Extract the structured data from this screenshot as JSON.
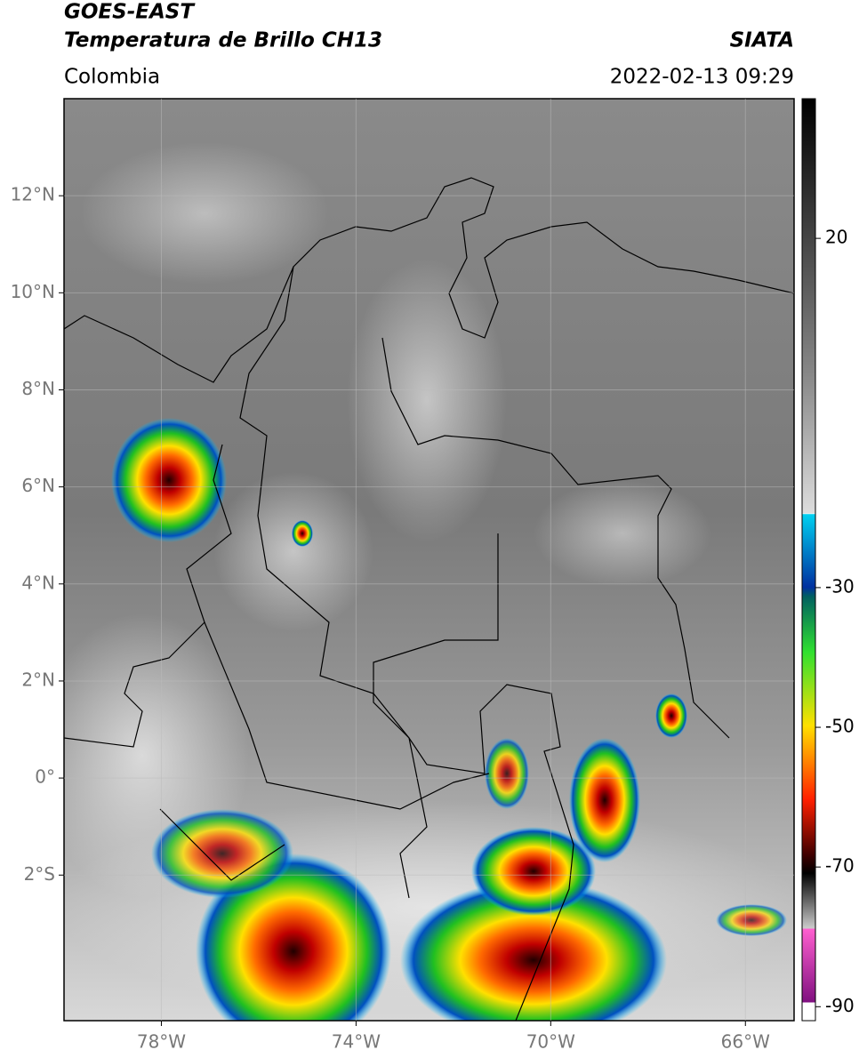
{
  "header": {
    "title": "GOES-EAST",
    "subtitle": "Temperatura de Brillo CH13",
    "region": "Colombia",
    "source": "SIATA",
    "timestamp": "2022-02-13 09:29"
  },
  "map": {
    "xlim": [
      -80,
      -65
    ],
    "ylim": [
      -5,
      14
    ],
    "xticks": [
      {
        "value": -78,
        "label": "78°W"
      },
      {
        "value": -74,
        "label": "74°W"
      },
      {
        "value": -70,
        "label": "70°W"
      },
      {
        "value": -66,
        "label": "66°W"
      }
    ],
    "yticks": [
      {
        "value": 12,
        "label": "12°N"
      },
      {
        "value": 10,
        "label": "10°N"
      },
      {
        "value": 8,
        "label": "8°N"
      },
      {
        "value": 6,
        "label": "6°N"
      },
      {
        "value": 4,
        "label": "4°N"
      },
      {
        "value": 2,
        "label": "2°N"
      },
      {
        "value": 0,
        "label": "0°"
      },
      {
        "value": -2,
        "label": "2°S"
      }
    ]
  },
  "colorbar": {
    "lim": [
      -92,
      40
    ],
    "ticks": [
      20,
      -30,
      -50,
      -70,
      -90
    ]
  }
}
